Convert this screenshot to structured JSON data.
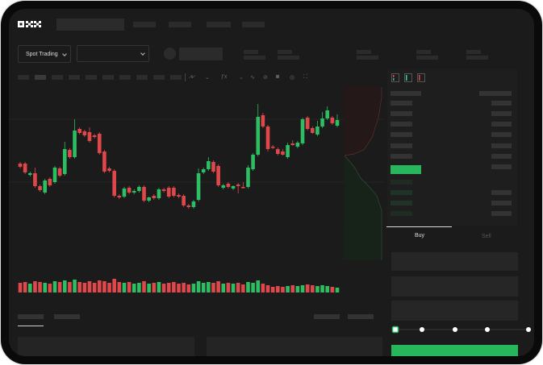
{
  "brand": {
    "logo": "OKX"
  },
  "toolbar": {
    "spot_trading_label": "Spot Trading",
    "icons": [
      "chevron-down-icon",
      "indicator-icon",
      "line-tool-icon",
      "ruler-icon",
      "camera-icon",
      "settings-icon",
      "fullscreen-icon"
    ]
  },
  "orderbook": {
    "view_icons": [
      "orderbook-both-icon",
      "orderbook-bids-icon",
      "orderbook-asks-icon"
    ]
  },
  "trade": {
    "buy_tab": "Buy",
    "sell_tab": "Sell",
    "slider_percent": 0,
    "slider_stops": [
      0,
      25,
      50,
      75,
      100
    ]
  },
  "colors": {
    "up": "#2dbd62",
    "down": "#e0474a",
    "buy_button": "#27b65b",
    "background": "#1b1b1b"
  },
  "chart_data": {
    "type": "candlestick",
    "ohlc": [
      [
        97,
        99,
        91,
        93
      ],
      [
        97,
        99,
        84,
        86
      ],
      [
        83,
        87,
        81,
        85
      ],
      [
        85,
        92,
        67,
        69
      ],
      [
        69,
        71,
        62,
        64
      ],
      [
        61,
        78,
        59,
        76
      ],
      [
        78,
        80,
        68,
        70
      ],
      [
        74,
        94,
        72,
        92
      ],
      [
        91,
        93,
        80,
        82
      ],
      [
        84,
        124,
        82,
        115
      ],
      [
        114,
        116,
        103,
        105
      ],
      [
        105,
        152,
        103,
        138
      ],
      [
        140,
        142,
        133,
        135
      ],
      [
        137,
        139,
        130,
        132
      ],
      [
        136,
        142,
        123,
        125
      ],
      [
        132,
        134,
        128,
        130
      ],
      [
        134,
        136,
        108,
        110
      ],
      [
        112,
        114,
        85,
        87
      ],
      [
        91,
        93,
        86,
        88
      ],
      [
        88,
        90,
        55,
        57
      ],
      [
        57,
        59,
        53,
        55
      ],
      [
        56,
        68,
        54,
        66
      ],
      [
        67,
        69,
        59,
        61
      ],
      [
        61,
        65,
        59,
        63
      ],
      [
        63,
        70,
        61,
        68
      ],
      [
        68,
        70,
        49,
        51
      ],
      [
        51,
        56,
        49,
        55
      ],
      [
        57,
        59,
        52,
        54
      ],
      [
        54,
        67,
        52,
        65
      ],
      [
        65,
        67,
        61,
        63
      ],
      [
        67,
        69,
        54,
        56
      ],
      [
        67,
        69,
        55,
        57
      ],
      [
        58,
        60,
        54,
        56
      ],
      [
        57,
        59,
        43,
        45
      ],
      [
        45,
        47,
        41,
        43
      ],
      [
        43,
        52,
        41,
        50
      ],
      [
        52,
        91,
        50,
        85
      ],
      [
        86,
        92,
        84,
        90
      ],
      [
        90,
        105,
        88,
        100
      ],
      [
        99,
        101,
        85,
        87
      ],
      [
        94,
        96,
        68,
        70
      ],
      [
        67,
        72,
        65,
        70
      ],
      [
        72,
        74,
        66,
        68
      ],
      [
        66,
        70,
        64,
        69
      ],
      [
        71,
        73,
        60,
        69
      ],
      [
        68,
        74,
        66,
        67
      ],
      [
        68,
        95,
        66,
        92
      ],
      [
        90,
        110,
        88,
        108
      ],
      [
        108,
        171,
        106,
        155
      ],
      [
        157,
        160,
        141,
        143
      ],
      [
        143,
        145,
        112,
        115
      ],
      [
        118,
        120,
        115,
        117
      ],
      [
        115,
        117,
        107,
        109
      ],
      [
        112,
        115,
        107,
        108
      ],
      [
        105,
        123,
        103,
        120
      ],
      [
        122,
        126,
        119,
        120
      ],
      [
        118,
        125,
        116,
        123
      ],
      [
        122,
        154,
        120,
        152
      ],
      [
        154,
        156,
        138,
        140
      ],
      [
        141,
        143,
        134,
        135
      ],
      [
        133,
        150,
        131,
        143
      ],
      [
        143,
        161,
        141,
        153
      ],
      [
        153,
        168,
        151,
        163
      ],
      [
        154,
        156,
        145,
        147
      ],
      [
        144,
        158,
        142,
        151
      ]
    ],
    "volume": [
      12,
      13,
      11,
      14,
      13,
      12,
      11,
      14,
      13,
      15,
      13,
      16,
      13,
      12,
      14,
      12,
      15,
      14,
      12,
      17,
      13,
      12,
      13,
      11,
      12,
      14,
      11,
      12,
      13,
      11,
      12,
      13,
      11,
      12,
      10,
      11,
      14,
      12,
      13,
      12,
      14,
      11,
      12,
      11,
      12,
      10,
      13,
      12,
      15,
      11,
      9,
      7,
      8,
      7,
      8,
      9,
      8,
      9,
      10,
      9,
      8,
      9,
      8,
      7,
      6
    ],
    "price_range": [
      35,
      175
    ]
  }
}
